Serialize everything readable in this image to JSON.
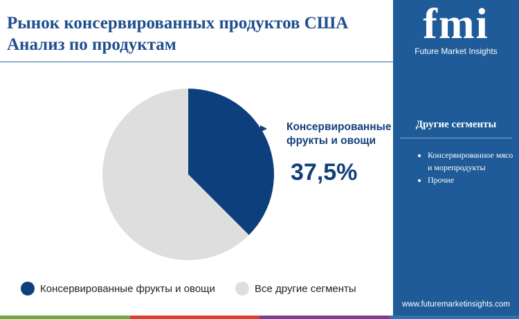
{
  "chart_data": {
    "type": "pie",
    "title": "Рынок консервированных продуктов США",
    "subtitle": "Анализ  по продуктам",
    "categories": [
      "Консервированные фрукты и овощи",
      "Все другие сегменты"
    ],
    "values": [
      37.5,
      62.5
    ],
    "value_labels": [
      "37,5%",
      null
    ],
    "colors": [
      "#0e3f7d",
      "#dedede"
    ]
  },
  "sidebar": {
    "logo": "fmi",
    "brand": "Future Market Insights",
    "title": "Другие сегменты",
    "items": [
      "Консервированное мясо и морепродукты",
      "Прочие"
    ],
    "website": "www.futuremarketinsights.com"
  }
}
